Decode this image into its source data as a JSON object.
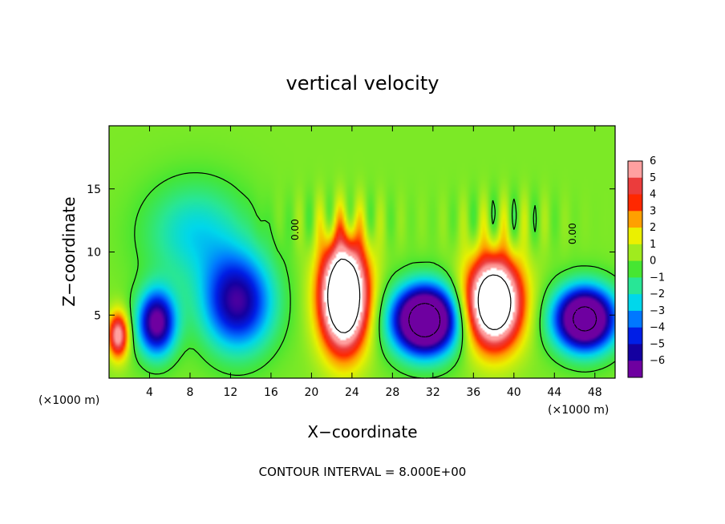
{
  "chart_data": {
    "type": "heatmap",
    "title": "vertical velocity",
    "xlabel": "X−coordinate",
    "ylabel": "Z−coordinate",
    "x_unit_left": "(×1000 m)",
    "x_unit_right": "(×1000 m)",
    "xlim": [
      0,
      50
    ],
    "ylim": [
      0,
      20
    ],
    "x_ticks": [
      4,
      8,
      12,
      16,
      20,
      24,
      28,
      32,
      36,
      40,
      44,
      48
    ],
    "y_ticks": [
      5,
      10,
      15
    ],
    "colorbar": {
      "ticks": [
        6,
        5,
        4,
        3,
        2,
        1,
        0,
        "−1",
        "−2",
        "−3",
        "−4",
        "−5",
        "−6"
      ],
      "range": [
        -6,
        6
      ]
    },
    "contour_labels": [
      "0.00",
      "0.00"
    ],
    "footer": "CONTOUR INTERVAL = 8.000E+00",
    "features": [
      {
        "kind": "updraft",
        "x": 23.2,
        "z": 6.5,
        "sx": 2.3,
        "sy": 4.2,
        "amp": 12
      },
      {
        "kind": "updraft",
        "x": 38.0,
        "z": 6.0,
        "sx": 2.7,
        "sy": 3.5,
        "amp": 11
      },
      {
        "kind": "updraft",
        "x": 0.9,
        "z": 3.4,
        "sx": 1.0,
        "sy": 1.8,
        "amp": 6
      },
      {
        "kind": "downdraft",
        "x": 31.2,
        "z": 4.6,
        "sx": 3.2,
        "sy": 2.7,
        "amp": -11
      },
      {
        "kind": "downdraft",
        "x": 47.0,
        "z": 4.7,
        "sx": 3.0,
        "sy": 2.5,
        "amp": -10
      },
      {
        "kind": "downdraft",
        "x": 4.7,
        "z": 4.4,
        "sx": 1.9,
        "sy": 2.6,
        "amp": -7
      },
      {
        "kind": "downdraft",
        "x": 12.7,
        "z": 6.0,
        "sx": 3.5,
        "sy": 3.8,
        "amp": -6
      },
      {
        "kind": "downdraft",
        "x": 8.5,
        "z": 11.5,
        "sx": 5.0,
        "sy": 4.0,
        "amp": -2.5
      }
    ]
  }
}
